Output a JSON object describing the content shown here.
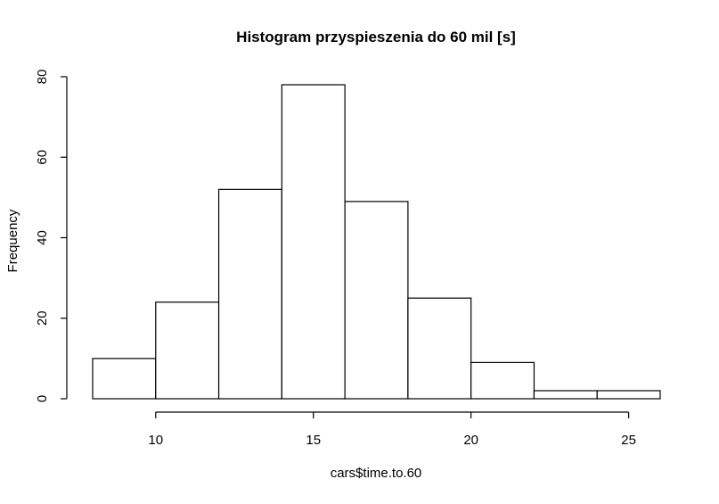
{
  "chart_data": {
    "type": "bar",
    "subtype": "histogram",
    "title": "Histogram przyspieszenia do 60 mil [s]",
    "xlabel": "cars$time.to.60",
    "ylabel": "Frequency",
    "bins": [
      {
        "start": 8,
        "end": 10,
        "count": 10
      },
      {
        "start": 10,
        "end": 12,
        "count": 24
      },
      {
        "start": 12,
        "end": 14,
        "count": 52
      },
      {
        "start": 14,
        "end": 16,
        "count": 78
      },
      {
        "start": 16,
        "end": 18,
        "count": 49
      },
      {
        "start": 18,
        "end": 20,
        "count": 25
      },
      {
        "start": 20,
        "end": 22,
        "count": 9
      },
      {
        "start": 22,
        "end": 24,
        "count": 2
      },
      {
        "start": 24,
        "end": 26,
        "count": 2
      }
    ],
    "xlim": [
      8,
      26
    ],
    "ylim": [
      0,
      80
    ],
    "x_ticks": [
      "10",
      "15",
      "20",
      "25"
    ],
    "y_ticks": [
      "0",
      "20",
      "40",
      "60",
      "80"
    ],
    "bar_fill": "#ffffff",
    "bar_stroke": "#000000",
    "grid": false,
    "legend": "none"
  }
}
